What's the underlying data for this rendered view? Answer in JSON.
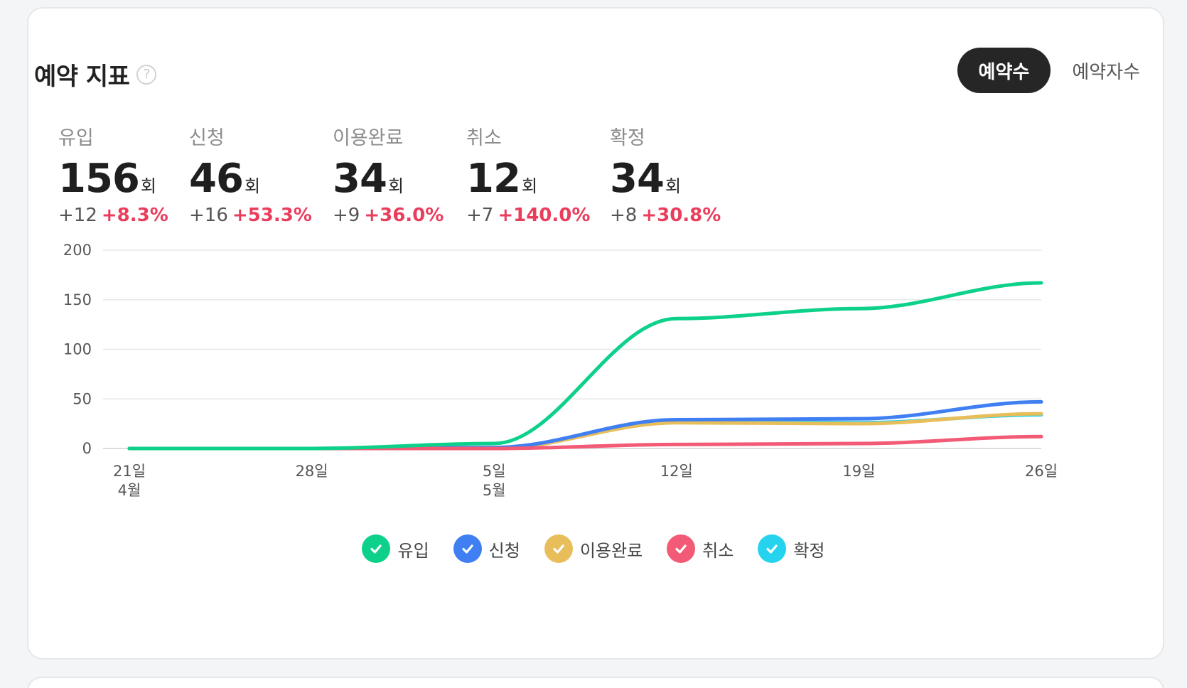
{
  "title": "예약 지표",
  "help_icon": "?",
  "toggle": {
    "active_label": "예약수",
    "inactive_label": "예약자수"
  },
  "stats": [
    {
      "label": "유입",
      "value": "156",
      "unit": "회",
      "delta_abs": "+12",
      "delta_pct": "+8.3%"
    },
    {
      "label": "신청",
      "value": "46",
      "unit": "회",
      "delta_abs": "+16",
      "delta_pct": "+53.3%"
    },
    {
      "label": "이용완료",
      "value": "34",
      "unit": "회",
      "delta_abs": "+9",
      "delta_pct": "+36.0%"
    },
    {
      "label": "취소",
      "value": "12",
      "unit": "회",
      "delta_abs": "+7",
      "delta_pct": "+140.0%"
    },
    {
      "label": "확정",
      "value": "34",
      "unit": "회",
      "delta_abs": "+8",
      "delta_pct": "+30.8%"
    }
  ],
  "chart_data": {
    "type": "line",
    "x": [
      "2024-04-21",
      "2024-04-28",
      "2024-05-05",
      "2024-05-12",
      "2024-05-19",
      "2024-05-26"
    ],
    "x_tick_labels": [
      {
        "day": "21일",
        "month": "4월"
      },
      {
        "day": "28일",
        "month": ""
      },
      {
        "day": "5일",
        "month": "5월"
      },
      {
        "day": "12일",
        "month": ""
      },
      {
        "day": "19일",
        "month": ""
      },
      {
        "day": "26일",
        "month": ""
      }
    ],
    "ylim": [
      0,
      200
    ],
    "y_ticks": [
      0,
      50,
      100,
      150,
      200
    ],
    "grid": true,
    "series": [
      {
        "name": "유입",
        "color": "#0dd18a",
        "values": [
          0,
          0,
          5,
          131,
          141,
          167
        ]
      },
      {
        "name": "신청",
        "color": "#3f7ff2",
        "values": [
          0,
          0,
          1,
          29,
          30,
          47
        ]
      },
      {
        "name": "이용완료",
        "color": "#e8be5b",
        "values": [
          0,
          0,
          0,
          26,
          25,
          35
        ]
      },
      {
        "name": "취소",
        "color": "#f25a75",
        "values": [
          0,
          0,
          0,
          4,
          5,
          12
        ]
      },
      {
        "name": "확정",
        "color": "#25d3ef",
        "values": [
          0,
          0,
          0,
          27,
          26,
          34
        ]
      }
    ],
    "legend_position": "bottom-center"
  }
}
